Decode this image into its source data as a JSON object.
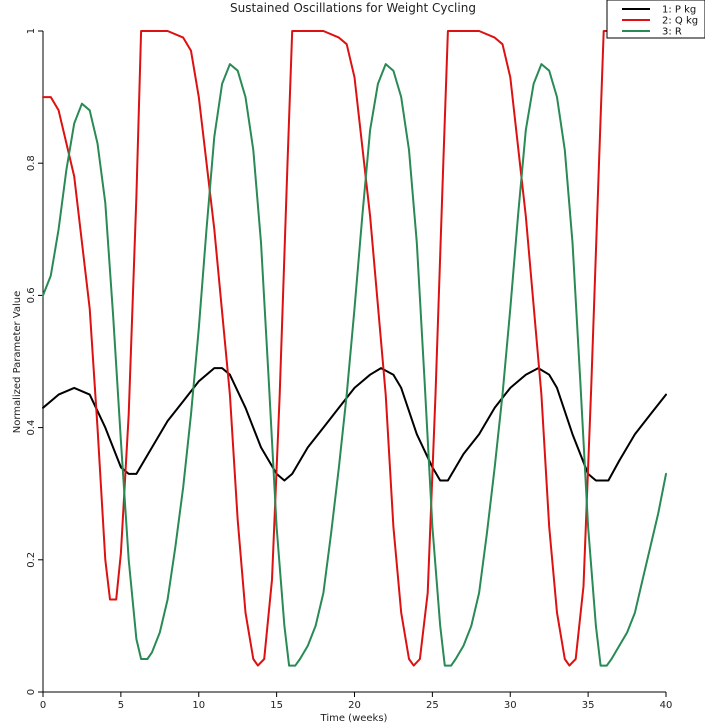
{
  "chart_data": {
    "type": "line",
    "title": "Sustained Oscillations for Weight Cycling",
    "xlabel": "Time (weeks)",
    "ylabel": "Normalized Parameter Value",
    "xlim": [
      0,
      40
    ],
    "ylim": [
      0,
      1
    ],
    "x_ticks": [
      0,
      5,
      10,
      15,
      20,
      25,
      30,
      35,
      40
    ],
    "y_ticks": [
      0,
      0.2,
      0.4,
      0.6,
      0.8,
      1
    ],
    "x_tick_labels": [
      "0",
      "5",
      "10",
      "15",
      "20",
      "25",
      "30",
      "35",
      "40"
    ],
    "y_tick_labels": [
      "0",
      "0.2",
      "0.4",
      "0.6",
      "0.8",
      "1"
    ],
    "grid": false,
    "legend_position": "top-right",
    "series": [
      {
        "name": "1: P kg",
        "color": "#000000",
        "points": [
          [
            0,
            0.43
          ],
          [
            1,
            0.45
          ],
          [
            2,
            0.46
          ],
          [
            3,
            0.45
          ],
          [
            4,
            0.4
          ],
          [
            5,
            0.34
          ],
          [
            5.5,
            0.33
          ],
          [
            6,
            0.33
          ],
          [
            7,
            0.37
          ],
          [
            8,
            0.41
          ],
          [
            9,
            0.44
          ],
          [
            10,
            0.47
          ],
          [
            11,
            0.49
          ],
          [
            11.5,
            0.49
          ],
          [
            12,
            0.48
          ],
          [
            13,
            0.43
          ],
          [
            14,
            0.37
          ],
          [
            15,
            0.33
          ],
          [
            15.5,
            0.32
          ],
          [
            16,
            0.33
          ],
          [
            17,
            0.37
          ],
          [
            18,
            0.4
          ],
          [
            19,
            0.43
          ],
          [
            20,
            0.46
          ],
          [
            21,
            0.48
          ],
          [
            21.7,
            0.49
          ],
          [
            22.5,
            0.48
          ],
          [
            23,
            0.46
          ],
          [
            24,
            0.39
          ],
          [
            25,
            0.34
          ],
          [
            25.5,
            0.32
          ],
          [
            26,
            0.32
          ],
          [
            27,
            0.36
          ],
          [
            28,
            0.39
          ],
          [
            29,
            0.43
          ],
          [
            30,
            0.46
          ],
          [
            31,
            0.48
          ],
          [
            31.8,
            0.49
          ],
          [
            32.5,
            0.48
          ],
          [
            33,
            0.46
          ],
          [
            34,
            0.39
          ],
          [
            35,
            0.33
          ],
          [
            35.5,
            0.32
          ],
          [
            36.3,
            0.32
          ],
          [
            37,
            0.35
          ],
          [
            38,
            0.39
          ],
          [
            39,
            0.42
          ],
          [
            40,
            0.45
          ]
        ]
      },
      {
        "name": "2: Q kg",
        "color": "#dd1111",
        "points": [
          [
            0,
            0.9
          ],
          [
            0.5,
            0.9
          ],
          [
            1,
            0.88
          ],
          [
            2,
            0.78
          ],
          [
            3,
            0.58
          ],
          [
            3.5,
            0.4
          ],
          [
            4,
            0.2
          ],
          [
            4.3,
            0.14
          ],
          [
            4.7,
            0.14
          ],
          [
            5,
            0.21
          ],
          [
            5.5,
            0.42
          ],
          [
            6,
            0.75
          ],
          [
            6.3,
            1.0
          ],
          [
            7,
            1.0
          ],
          [
            8,
            1.0
          ],
          [
            9,
            0.99
          ],
          [
            9.5,
            0.97
          ],
          [
            10,
            0.9
          ],
          [
            11,
            0.7
          ],
          [
            12,
            0.45
          ],
          [
            12.5,
            0.26
          ],
          [
            13,
            0.12
          ],
          [
            13.5,
            0.05
          ],
          [
            13.8,
            0.04
          ],
          [
            14.2,
            0.05
          ],
          [
            14.7,
            0.17
          ],
          [
            15.2,
            0.45
          ],
          [
            15.7,
            0.8
          ],
          [
            16,
            1.0
          ],
          [
            17,
            1.0
          ],
          [
            18,
            1.0
          ],
          [
            19,
            0.99
          ],
          [
            19.5,
            0.98
          ],
          [
            20,
            0.93
          ],
          [
            21,
            0.72
          ],
          [
            22,
            0.45
          ],
          [
            22.5,
            0.25
          ],
          [
            23,
            0.12
          ],
          [
            23.5,
            0.05
          ],
          [
            23.8,
            0.04
          ],
          [
            24.2,
            0.05
          ],
          [
            24.7,
            0.15
          ],
          [
            25.2,
            0.45
          ],
          [
            25.7,
            0.8
          ],
          [
            26,
            1.0
          ],
          [
            27,
            1.0
          ],
          [
            28,
            1.0
          ],
          [
            29,
            0.99
          ],
          [
            29.5,
            0.98
          ],
          [
            30,
            0.93
          ],
          [
            31,
            0.72
          ],
          [
            32,
            0.45
          ],
          [
            32.5,
            0.25
          ],
          [
            33,
            0.12
          ],
          [
            33.5,
            0.05
          ],
          [
            33.8,
            0.04
          ],
          [
            34.2,
            0.05
          ],
          [
            34.7,
            0.16
          ],
          [
            35.2,
            0.46
          ],
          [
            35.7,
            0.8
          ],
          [
            36,
            1.0
          ],
          [
            37,
            1.0
          ],
          [
            38,
            1.0
          ],
          [
            39,
            1.0
          ],
          [
            40,
            1.0
          ]
        ]
      },
      {
        "name": "3: R",
        "color": "#2a8a55",
        "points": [
          [
            0,
            0.6
          ],
          [
            0.5,
            0.63
          ],
          [
            1,
            0.7
          ],
          [
            1.5,
            0.79
          ],
          [
            2,
            0.86
          ],
          [
            2.5,
            0.89
          ],
          [
            3,
            0.88
          ],
          [
            3.5,
            0.83
          ],
          [
            4,
            0.74
          ],
          [
            4.5,
            0.57
          ],
          [
            5,
            0.38
          ],
          [
            5.5,
            0.2
          ],
          [
            6,
            0.08
          ],
          [
            6.3,
            0.05
          ],
          [
            6.7,
            0.05
          ],
          [
            7,
            0.06
          ],
          [
            7.5,
            0.09
          ],
          [
            8,
            0.14
          ],
          [
            8.5,
            0.22
          ],
          [
            9,
            0.31
          ],
          [
            9.5,
            0.42
          ],
          [
            10,
            0.55
          ],
          [
            10.5,
            0.7
          ],
          [
            11,
            0.84
          ],
          [
            11.5,
            0.92
          ],
          [
            12,
            0.95
          ],
          [
            12.5,
            0.94
          ],
          [
            13,
            0.9
          ],
          [
            13.5,
            0.82
          ],
          [
            14,
            0.68
          ],
          [
            14.5,
            0.47
          ],
          [
            15,
            0.25
          ],
          [
            15.5,
            0.1
          ],
          [
            15.8,
            0.04
          ],
          [
            16.2,
            0.04
          ],
          [
            16.5,
            0.05
          ],
          [
            17,
            0.07
          ],
          [
            17.5,
            0.1
          ],
          [
            18,
            0.15
          ],
          [
            18.5,
            0.24
          ],
          [
            19,
            0.34
          ],
          [
            19.5,
            0.45
          ],
          [
            20,
            0.58
          ],
          [
            20.5,
            0.72
          ],
          [
            21,
            0.85
          ],
          [
            21.5,
            0.92
          ],
          [
            22,
            0.95
          ],
          [
            22.5,
            0.94
          ],
          [
            23,
            0.9
          ],
          [
            23.5,
            0.82
          ],
          [
            24,
            0.68
          ],
          [
            24.5,
            0.47
          ],
          [
            25,
            0.25
          ],
          [
            25.5,
            0.1
          ],
          [
            25.8,
            0.04
          ],
          [
            26.2,
            0.04
          ],
          [
            26.5,
            0.05
          ],
          [
            27,
            0.07
          ],
          [
            27.5,
            0.1
          ],
          [
            28,
            0.15
          ],
          [
            28.5,
            0.24
          ],
          [
            29,
            0.34
          ],
          [
            29.5,
            0.45
          ],
          [
            30,
            0.58
          ],
          [
            30.5,
            0.72
          ],
          [
            31,
            0.85
          ],
          [
            31.5,
            0.92
          ],
          [
            32,
            0.95
          ],
          [
            32.5,
            0.94
          ],
          [
            33,
            0.9
          ],
          [
            33.5,
            0.82
          ],
          [
            34,
            0.68
          ],
          [
            34.5,
            0.47
          ],
          [
            35,
            0.25
          ],
          [
            35.5,
            0.1
          ],
          [
            35.8,
            0.04
          ],
          [
            36.2,
            0.04
          ],
          [
            36.5,
            0.05
          ],
          [
            37,
            0.07
          ],
          [
            37.5,
            0.09
          ],
          [
            38,
            0.12
          ],
          [
            38.5,
            0.17
          ],
          [
            39,
            0.22
          ],
          [
            39.5,
            0.27
          ],
          [
            40,
            0.33
          ]
        ]
      }
    ]
  }
}
